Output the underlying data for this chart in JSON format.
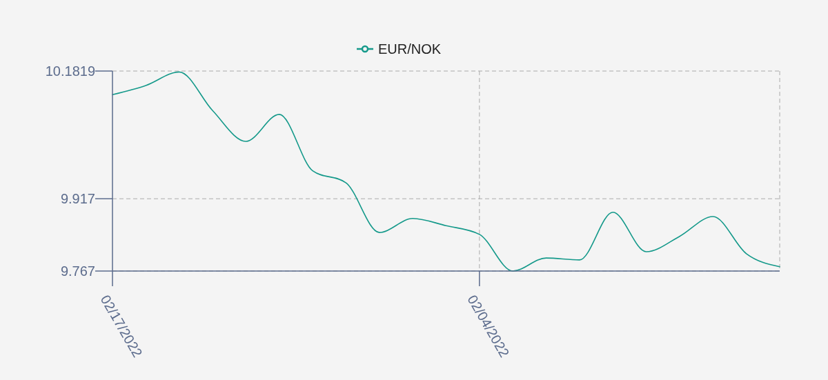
{
  "chart_data": {
    "type": "line",
    "categories": [
      "02/17/2022",
      null,
      null,
      null,
      null,
      null,
      null,
      null,
      null,
      null,
      null,
      "02/04/2022",
      null,
      null,
      null,
      null,
      null,
      null,
      null,
      null,
      null
    ],
    "series": [
      {
        "name": "EUR/NOK",
        "color": "#14998a",
        "values": [
          10.133,
          10.152,
          10.18,
          10.1,
          10.036,
          10.092,
          9.975,
          9.95,
          9.847,
          9.876,
          9.861,
          9.843,
          9.767,
          9.794,
          9.79,
          9.889,
          9.807,
          9.839,
          9.88,
          9.803,
          9.776
        ]
      }
    ],
    "ylim": [
      9.767,
      10.1819
    ],
    "yticks": [
      9.767,
      9.917,
      10.1819
    ],
    "grid": true,
    "legend": "top"
  }
}
